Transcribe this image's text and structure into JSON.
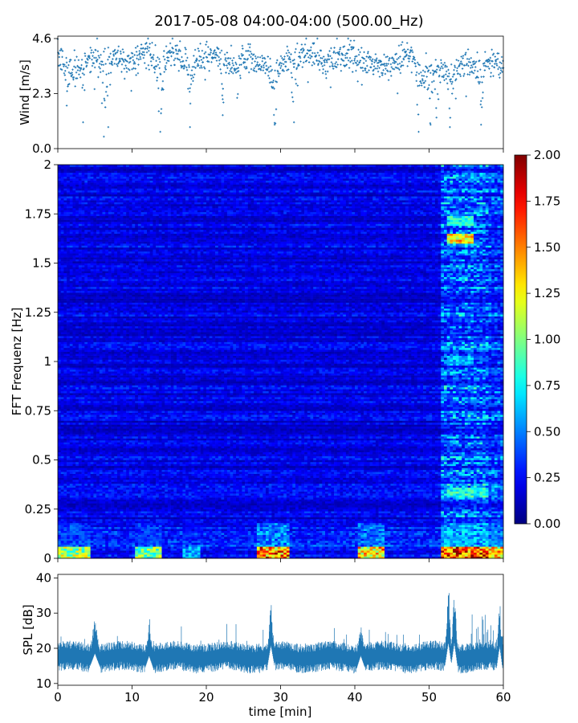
{
  "figure": {
    "title": "2017-05-08 04:00-04:00 (500.00_Hz)"
  },
  "chart_data": [
    {
      "type": "scatter",
      "panel": "wind",
      "ylabel": "Wind [m/s]",
      "yticks": [
        "0.0",
        "2.3",
        "4.6"
      ],
      "ylim": [
        0,
        4.7
      ],
      "xlim": [
        0,
        60
      ],
      "marker": "plus",
      "color": "#1f77b4",
      "x_step_min": 0.05,
      "baseline": [
        {
          "x": 0,
          "y": 3.8
        },
        {
          "x": 1,
          "y": 3.6
        },
        {
          "x": 2,
          "y": 3.2
        },
        {
          "x": 3,
          "y": 3.5
        },
        {
          "x": 4,
          "y": 3.7
        },
        {
          "x": 5,
          "y": 3.9
        },
        {
          "x": 6,
          "y": 3.6
        },
        {
          "x": 7,
          "y": 3.8
        },
        {
          "x": 8,
          "y": 3.9
        },
        {
          "x": 9,
          "y": 3.7
        },
        {
          "x": 10,
          "y": 3.6
        },
        {
          "x": 11,
          "y": 3.9
        },
        {
          "x": 12,
          "y": 4.1
        },
        {
          "x": 13,
          "y": 3.6
        },
        {
          "x": 14,
          "y": 3.2
        },
        {
          "x": 15,
          "y": 3.9
        },
        {
          "x": 16,
          "y": 4.0
        },
        {
          "x": 17,
          "y": 3.5
        },
        {
          "x": 18,
          "y": 3.4
        },
        {
          "x": 19,
          "y": 3.8
        },
        {
          "x": 20,
          "y": 3.8
        },
        {
          "x": 21,
          "y": 3.9
        },
        {
          "x": 22,
          "y": 3.8
        },
        {
          "x": 23,
          "y": 3.6
        },
        {
          "x": 24,
          "y": 3.4
        },
        {
          "x": 25,
          "y": 3.7
        },
        {
          "x": 26,
          "y": 3.8
        },
        {
          "x": 27,
          "y": 3.6
        },
        {
          "x": 28,
          "y": 3.5
        },
        {
          "x": 29,
          "y": 3.0
        },
        {
          "x": 30,
          "y": 3.5
        },
        {
          "x": 31,
          "y": 3.7
        },
        {
          "x": 32,
          "y": 3.8
        },
        {
          "x": 33,
          "y": 3.9
        },
        {
          "x": 34,
          "y": 4.1
        },
        {
          "x": 35,
          "y": 3.8
        },
        {
          "x": 36,
          "y": 3.5
        },
        {
          "x": 37,
          "y": 3.6
        },
        {
          "x": 38,
          "y": 3.9
        },
        {
          "x": 39,
          "y": 4.0
        },
        {
          "x": 40,
          "y": 3.6
        },
        {
          "x": 41,
          "y": 3.5
        },
        {
          "x": 42,
          "y": 3.6
        },
        {
          "x": 43,
          "y": 3.5
        },
        {
          "x": 44,
          "y": 3.4
        },
        {
          "x": 45,
          "y": 3.5
        },
        {
          "x": 46,
          "y": 3.7
        },
        {
          "x": 47,
          "y": 3.9
        },
        {
          "x": 48,
          "y": 3.8
        },
        {
          "x": 49,
          "y": 3.0
        },
        {
          "x": 50,
          "y": 3.2
        },
        {
          "x": 51,
          "y": 3.4
        },
        {
          "x": 52,
          "y": 3.3
        },
        {
          "x": 53,
          "y": 3.0
        },
        {
          "x": 54,
          "y": 3.4
        },
        {
          "x": 55,
          "y": 3.6
        },
        {
          "x": 56,
          "y": 3.5
        },
        {
          "x": 57,
          "y": 3.3
        },
        {
          "x": 58,
          "y": 3.7
        },
        {
          "x": 59,
          "y": 3.6
        },
        {
          "x": 60,
          "y": 3.6
        }
      ],
      "dips": [
        {
          "x": 1.2,
          "y": 1.8
        },
        {
          "x": 3.4,
          "y": 1.1
        },
        {
          "x": 6.2,
          "y": 0.5
        },
        {
          "x": 6.8,
          "y": 0.9
        },
        {
          "x": 13.8,
          "y": 0.7
        },
        {
          "x": 17.8,
          "y": 0.9
        },
        {
          "x": 22.2,
          "y": 1.4
        },
        {
          "x": 29.2,
          "y": 1.0
        },
        {
          "x": 31.8,
          "y": 1.1
        },
        {
          "x": 48.6,
          "y": 0.7
        },
        {
          "x": 50.2,
          "y": 1.0
        },
        {
          "x": 51.0,
          "y": 1.3
        },
        {
          "x": 52.8,
          "y": 0.9
        },
        {
          "x": 57.0,
          "y": 1.0
        }
      ]
    },
    {
      "type": "heatmap",
      "panel": "spectrogram",
      "ylabel": "FFT Frequenz [Hz]",
      "yticks": [
        "0",
        "0.25",
        "0.5",
        "0.75",
        "1",
        "1.25",
        "1.5",
        "1.75",
        "2"
      ],
      "ylim": [
        0,
        2
      ],
      "xlim": [
        0,
        60
      ],
      "colormap": "jet",
      "clim": [
        0,
        2
      ],
      "colorbar_ticks": [
        "0.00",
        "0.25",
        "0.50",
        "0.75",
        "1.00",
        "1.25",
        "1.50",
        "1.75",
        "2.00"
      ],
      "time_columns": 150,
      "freq_rows": 200,
      "base_level": 0.2,
      "events": [
        {
          "t0": 0,
          "t1": 4.5,
          "low_freq_peak": 1.3
        },
        {
          "t0": 10.5,
          "t1": 14,
          "low_freq_peak": 1.2
        },
        {
          "t0": 17,
          "t1": 19,
          "low_freq_peak": 0.7
        },
        {
          "t0": 26.8,
          "t1": 31,
          "low_freq_peak": 1.9
        },
        {
          "t0": 40.5,
          "t1": 44,
          "low_freq_peak": 1.7
        },
        {
          "t0": 51.5,
          "t1": 58,
          "low_freq_peak": 2.0,
          "broadband": 0.55
        },
        {
          "t0": 58,
          "t1": 60,
          "low_freq_peak": 1.6,
          "broadband": 0.45
        }
      ],
      "highlight_bands": [
        {
          "t0": 52.5,
          "t1": 56,
          "freq": 1.62,
          "level": 1.35
        },
        {
          "t0": 52.5,
          "t1": 56,
          "freq": 1.72,
          "level": 0.8
        },
        {
          "t0": 52.5,
          "t1": 56,
          "freq": 1.0,
          "level": 0.65
        },
        {
          "t0": 52.5,
          "t1": 58,
          "freq": 0.33,
          "level": 0.85
        }
      ]
    },
    {
      "type": "line",
      "panel": "spl",
      "ylabel": "SPL [dB]",
      "xlabel": "time [min]",
      "yticks": [
        "10",
        "20",
        "30",
        "40"
      ],
      "ylim": [
        9.5,
        41
      ],
      "xlim": [
        0,
        60
      ],
      "xticks": [
        "0",
        "10",
        "20",
        "30",
        "40",
        "50",
        "60"
      ],
      "color": "#1f77b4",
      "base_mean": 17.5,
      "base_spread": 3,
      "peaks": [
        {
          "t": 5,
          "max": 30,
          "width": 0.8
        },
        {
          "t": 12.3,
          "max": 28,
          "width": 0.6
        },
        {
          "t": 28.7,
          "max": 35,
          "width": 0.5
        },
        {
          "t": 40.8,
          "max": 28,
          "width": 0.6
        },
        {
          "t": 52.6,
          "max": 38,
          "width": 0.5
        },
        {
          "t": 53.4,
          "max": 38,
          "width": 0.5
        },
        {
          "t": 59.5,
          "max": 35,
          "width": 0.4
        }
      ]
    }
  ]
}
